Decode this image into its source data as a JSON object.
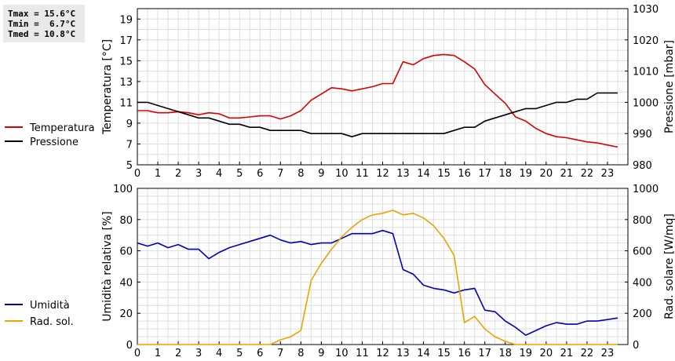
{
  "stats": {
    "tmax": "Tmax = 15.6°C",
    "tmin": "Tmin =  6.7°C",
    "tmed": "Tmed = 10.8°C"
  },
  "chart_data": [
    {
      "type": "line",
      "x_ticks": [
        0,
        1,
        2,
        3,
        4,
        5,
        6,
        7,
        8,
        9,
        10,
        11,
        12,
        13,
        14,
        15,
        16,
        17,
        18,
        19,
        20,
        21,
        22,
        23
      ],
      "xlim": [
        0,
        24
      ],
      "ylabel": "Temperatura [°C]",
      "ylabel_right": "Pressione [mbar]",
      "ylim": [
        5,
        20
      ],
      "y_ticks": [
        5,
        7,
        9,
        11,
        13,
        15,
        17,
        19
      ],
      "ylim_right": [
        980,
        1030
      ],
      "y_ticks_right": [
        980,
        990,
        1000,
        1010,
        1020,
        1030
      ],
      "grid": true,
      "legend_position": "left",
      "series": [
        {
          "name": "Temperatura",
          "axis": "left",
          "color": "#dd0000",
          "x": [
            0,
            0.5,
            1,
            1.5,
            2,
            2.5,
            3,
            3.5,
            4,
            4.5,
            5,
            5.5,
            6,
            6.5,
            7,
            7.5,
            8,
            8.5,
            9,
            9.5,
            10,
            10.5,
            11,
            11.5,
            12,
            12.5,
            13,
            13.5,
            14,
            14.5,
            15,
            15.5,
            16,
            16.5,
            17,
            17.5,
            18,
            18.5,
            19,
            19.5,
            20,
            20.5,
            21,
            21.5,
            22,
            22.5,
            23,
            23.5
          ],
          "y": [
            10.2,
            10.2,
            10.0,
            10.0,
            10.1,
            10.0,
            9.8,
            10.0,
            9.9,
            9.5,
            9.5,
            9.6,
            9.7,
            9.7,
            9.4,
            9.7,
            10.2,
            11.2,
            11.8,
            12.4,
            12.3,
            12.1,
            12.3,
            12.5,
            12.8,
            12.8,
            14.9,
            14.6,
            15.2,
            15.5,
            15.6,
            15.5,
            14.9,
            14.2,
            12.7,
            11.8,
            10.9,
            9.6,
            9.2,
            8.5,
            8.0,
            7.7,
            7.6,
            7.4,
            7.2,
            7.1,
            6.9,
            6.7
          ]
        },
        {
          "name": "Pressione",
          "axis": "right",
          "color": "#000000",
          "x": [
            0,
            0.5,
            1,
            1.5,
            2,
            2.5,
            3,
            3.5,
            4,
            4.5,
            5,
            5.5,
            6,
            6.5,
            7,
            7.5,
            8,
            8.5,
            9,
            9.5,
            10,
            10.5,
            11,
            11.5,
            12,
            12.5,
            13,
            13.5,
            14,
            14.5,
            15,
            15.5,
            16,
            16.5,
            17,
            17.5,
            18,
            18.5,
            19,
            19.5,
            20,
            20.5,
            21,
            21.5,
            22,
            22.5,
            23,
            23.5
          ],
          "y": [
            1000,
            1000,
            999,
            998,
            997,
            996,
            995,
            995,
            994,
            993,
            993,
            992,
            992,
            991,
            991,
            991,
            991,
            990,
            990,
            990,
            990,
            989,
            990,
            990,
            990,
            990,
            990,
            990,
            990,
            990,
            990,
            991,
            992,
            992,
            994,
            995,
            996,
            997,
            998,
            998,
            999,
            1000,
            1000,
            1001,
            1001,
            1003,
            1003,
            1003
          ]
        }
      ]
    },
    {
      "type": "line",
      "x_ticks": [
        0,
        1,
        2,
        3,
        4,
        5,
        6,
        7,
        8,
        9,
        10,
        11,
        12,
        13,
        14,
        15,
        16,
        17,
        18,
        19,
        20,
        21,
        22,
        23
      ],
      "xlim": [
        0,
        24
      ],
      "ylabel": "Umidità relativa [%]",
      "ylabel_right": "Rad. solare [W/mq]",
      "ylim": [
        0,
        100
      ],
      "y_ticks": [
        0,
        20,
        40,
        60,
        80,
        100
      ],
      "ylim_right": [
        0,
        1000
      ],
      "y_ticks_right": [
        0,
        200,
        400,
        600,
        800,
        1000
      ],
      "grid": true,
      "legend_position": "left",
      "series": [
        {
          "name": "Umidità",
          "axis": "left",
          "color": "#0000bb",
          "x": [
            0,
            0.5,
            1,
            1.5,
            2,
            2.5,
            3,
            3.5,
            4,
            4.5,
            5,
            5.5,
            6,
            6.5,
            7,
            7.5,
            8,
            8.5,
            9,
            9.5,
            10,
            10.5,
            11,
            11.5,
            12,
            12.5,
            13,
            13.5,
            14,
            14.5,
            15,
            15.5,
            16,
            16.5,
            17,
            17.5,
            18,
            18.5,
            19,
            19.5,
            20,
            20.5,
            21,
            21.5,
            22,
            22.5,
            23,
            23.5
          ],
          "y": [
            65,
            63,
            65,
            62,
            64,
            61,
            61,
            55,
            59,
            62,
            64,
            66,
            68,
            70,
            67,
            65,
            66,
            64,
            65,
            65,
            68,
            71,
            71,
            71,
            73,
            71,
            48,
            45,
            38,
            36,
            35,
            33,
            35,
            36,
            22,
            21,
            15,
            11,
            6,
            9,
            12,
            14,
            13,
            13,
            15,
            15,
            16,
            17
          ]
        },
        {
          "name": "Rad. sol.",
          "axis": "right",
          "color": "#f0a000",
          "x": [
            0,
            0.5,
            1,
            1.5,
            2,
            2.5,
            3,
            3.5,
            4,
            4.5,
            5,
            5.5,
            6,
            6.5,
            7,
            7.5,
            8,
            8.5,
            9,
            9.5,
            10,
            10.5,
            11,
            11.5,
            12,
            12.5,
            13,
            13.5,
            14,
            14.5,
            15,
            15.5,
            16,
            16.5,
            17,
            17.5,
            18,
            18.5,
            19,
            19.5,
            20,
            20.5,
            21,
            21.5,
            22,
            22.5,
            23,
            23.5
          ],
          "y": [
            0,
            0,
            0,
            0,
            0,
            0,
            0,
            0,
            0,
            0,
            0,
            0,
            0,
            0,
            30,
            50,
            90,
            410,
            520,
            610,
            690,
            750,
            800,
            830,
            840,
            860,
            830,
            840,
            810,
            760,
            680,
            570,
            140,
            180,
            100,
            50,
            20,
            0,
            0,
            0,
            0,
            0,
            0,
            0,
            0,
            0,
            0,
            0
          ]
        }
      ]
    }
  ]
}
